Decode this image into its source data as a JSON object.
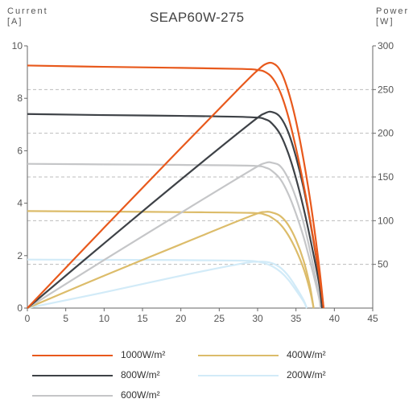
{
  "chart_data": {
    "type": "line",
    "title": "SEAP60W-275",
    "left_axis": {
      "label_line1": "Current",
      "label_line2": "[A]",
      "range": [
        0,
        10
      ],
      "ticks": [
        0,
        2,
        4,
        6,
        8,
        10
      ]
    },
    "right_axis": {
      "label_line1": "Power",
      "label_line2": "[W]",
      "range": [
        0,
        300
      ],
      "ticks": [
        50,
        100,
        150,
        200,
        250,
        300
      ]
    },
    "x_axis": {
      "label": "",
      "range": [
        0,
        45
      ],
      "ticks": [
        0,
        5,
        10,
        15,
        20,
        25,
        30,
        35,
        40,
        45
      ]
    },
    "grid": "horizontal dashed at right-axis ticks",
    "legend_position": "bottom",
    "series": [
      {
        "name": "1000W/m²",
        "color": "#e8591c",
        "iv": [
          [
            0,
            9.25
          ],
          [
            10,
            9.2
          ],
          [
            20,
            9.16
          ],
          [
            28,
            9.12
          ],
          [
            30,
            9.08
          ],
          [
            31,
            9.0
          ],
          [
            32,
            8.75
          ],
          [
            33,
            8.2
          ],
          [
            34,
            7.3
          ],
          [
            35,
            6.1
          ],
          [
            36,
            4.7
          ],
          [
            37,
            3.1
          ],
          [
            38,
            1.3
          ],
          [
            38.6,
            0
          ]
        ],
        "pv": [
          [
            0,
            0
          ],
          [
            10,
            92
          ],
          [
            20,
            183
          ],
          [
            28,
            255
          ],
          [
            30,
            272
          ],
          [
            31,
            279
          ],
          [
            32,
            280
          ],
          [
            33,
            271
          ],
          [
            34,
            248
          ],
          [
            35,
            214
          ],
          [
            36,
            169
          ],
          [
            37,
            115
          ],
          [
            38,
            49
          ],
          [
            38.6,
            0
          ]
        ]
      },
      {
        "name": "800W/m²",
        "color": "#3e4247",
        "iv": [
          [
            0,
            7.4
          ],
          [
            10,
            7.36
          ],
          [
            20,
            7.33
          ],
          [
            29,
            7.28
          ],
          [
            31,
            7.2
          ],
          [
            32,
            7.0
          ],
          [
            33,
            6.6
          ],
          [
            34,
            5.9
          ],
          [
            35,
            4.95
          ],
          [
            36,
            3.8
          ],
          [
            37,
            2.45
          ],
          [
            38,
            0.95
          ],
          [
            38.4,
            0
          ]
        ],
        "pv": [
          [
            0,
            0
          ],
          [
            10,
            74
          ],
          [
            20,
            147
          ],
          [
            29,
            211
          ],
          [
            31,
            223
          ],
          [
            32,
            224
          ],
          [
            33,
            218
          ],
          [
            34,
            201
          ],
          [
            35,
            173
          ],
          [
            36,
            137
          ],
          [
            37,
            91
          ],
          [
            38,
            36
          ],
          [
            38.4,
            0
          ]
        ]
      },
      {
        "name": "600W/m²",
        "color": "#c5c6c8",
        "iv": [
          [
            0,
            5.5
          ],
          [
            10,
            5.48
          ],
          [
            20,
            5.46
          ],
          [
            29,
            5.43
          ],
          [
            31,
            5.36
          ],
          [
            32,
            5.2
          ],
          [
            33,
            4.9
          ],
          [
            34,
            4.35
          ],
          [
            35,
            3.6
          ],
          [
            36,
            2.7
          ],
          [
            37,
            1.6
          ],
          [
            38,
            0.4
          ],
          [
            38.2,
            0
          ]
        ],
        "pv": [
          [
            0,
            0
          ],
          [
            10,
            55
          ],
          [
            20,
            109
          ],
          [
            29,
            157
          ],
          [
            31,
            166
          ],
          [
            32,
            166
          ],
          [
            33,
            162
          ],
          [
            34,
            148
          ],
          [
            35,
            126
          ],
          [
            36,
            97
          ],
          [
            37,
            59
          ],
          [
            38,
            15
          ],
          [
            38.2,
            0
          ]
        ]
      },
      {
        "name": "400W/m²",
        "color": "#dcbc6a",
        "iv": [
          [
            0,
            3.7
          ],
          [
            10,
            3.68
          ],
          [
            20,
            3.66
          ],
          [
            29,
            3.63
          ],
          [
            31,
            3.56
          ],
          [
            32,
            3.42
          ],
          [
            33,
            3.18
          ],
          [
            34,
            2.78
          ],
          [
            35,
            2.22
          ],
          [
            36,
            1.5
          ],
          [
            36.8,
            0.7
          ],
          [
            37.3,
            0
          ]
        ],
        "pv": [
          [
            0,
            0
          ],
          [
            10,
            37
          ],
          [
            20,
            73
          ],
          [
            29,
            105
          ],
          [
            31,
            110
          ],
          [
            32,
            109
          ],
          [
            33,
            105
          ],
          [
            34,
            95
          ],
          [
            35,
            78
          ],
          [
            36,
            54
          ],
          [
            36.8,
            26
          ],
          [
            37.3,
            0
          ]
        ]
      },
      {
        "name": "200W/m²",
        "color": "#d2ebf8",
        "iv": [
          [
            0,
            1.85
          ],
          [
            10,
            1.84
          ],
          [
            20,
            1.83
          ],
          [
            28,
            1.81
          ],
          [
            30,
            1.77
          ],
          [
            31,
            1.7
          ],
          [
            32,
            1.58
          ],
          [
            33,
            1.38
          ],
          [
            34,
            1.08
          ],
          [
            35,
            0.68
          ],
          [
            36,
            0.25
          ],
          [
            36.4,
            0
          ]
        ],
        "pv": [
          [
            0,
            0
          ],
          [
            10,
            18
          ],
          [
            20,
            37
          ],
          [
            28,
            51
          ],
          [
            30,
            53
          ],
          [
            31,
            53
          ],
          [
            32,
            51
          ],
          [
            33,
            46
          ],
          [
            34,
            37
          ],
          [
            35,
            24
          ],
          [
            36,
            9
          ],
          [
            36.4,
            0
          ]
        ]
      }
    ]
  },
  "legend": [
    {
      "label": "1000W/m²"
    },
    {
      "label": "400W/m²"
    },
    {
      "label": "800W/m²"
    },
    {
      "label": "200W/m²"
    },
    {
      "label": "600W/m²"
    }
  ]
}
